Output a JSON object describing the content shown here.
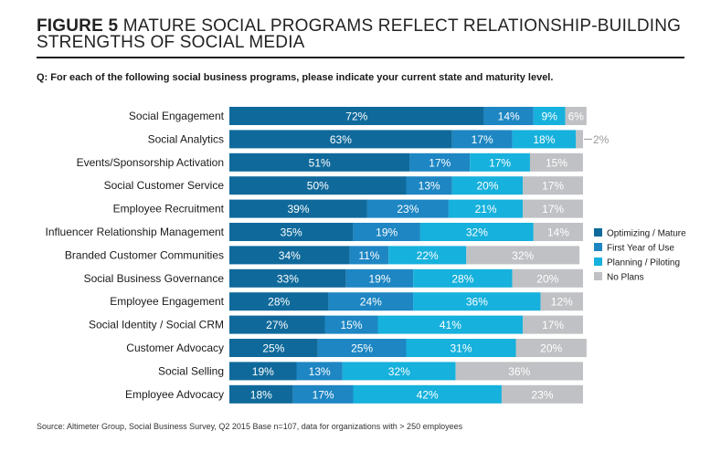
{
  "header": {
    "figure_label": "FIGURE 5",
    "title": "MATURE SOCIAL PROGRAMS REFLECT RELATIONSHIP-BUILDING STRENGTHS OF SOCIAL MEDIA",
    "question": "Q: For each of the following social business programs, please indicate your current state and maturity level."
  },
  "source": "Source: Altimeter Group, Social Business Survey, Q2 2015 Base n=107, data for organizations with > 250 employees",
  "chart_data": {
    "type": "bar",
    "orientation": "horizontal",
    "stacked": true,
    "unit": "%",
    "legend_position": "right",
    "grid": false,
    "categories": [
      "Social Engagement",
      "Social Analytics",
      "Events/Sponsorship Activation",
      "Social Customer Service",
      "Employee Recruitment",
      "Influencer Relationship Management",
      "Branded Customer Communities",
      "Social Business Governance",
      "Employee Engagement",
      "Social Identity / Social CRM",
      "Customer Advocacy",
      "Social Selling",
      "Employee Advocacy"
    ],
    "series": [
      {
        "name": "Optimizing / Mature",
        "color": "#0f6a9b",
        "values": [
          72,
          63,
          51,
          50,
          39,
          35,
          34,
          33,
          28,
          27,
          25,
          19,
          18
        ]
      },
      {
        "name": "First Year of Use",
        "color": "#1d86c3",
        "values": [
          14,
          17,
          17,
          13,
          23,
          19,
          11,
          19,
          24,
          15,
          25,
          13,
          17
        ]
      },
      {
        "name": "Planning / Piloting",
        "color": "#16b1dc",
        "values": [
          9,
          18,
          17,
          20,
          21,
          32,
          22,
          28,
          36,
          41,
          31,
          32,
          42
        ]
      },
      {
        "name": "No Plans",
        "color": "#bfc1c4",
        "values": [
          6,
          2,
          15,
          17,
          17,
          14,
          32,
          20,
          12,
          17,
          20,
          36,
          23
        ]
      }
    ]
  }
}
